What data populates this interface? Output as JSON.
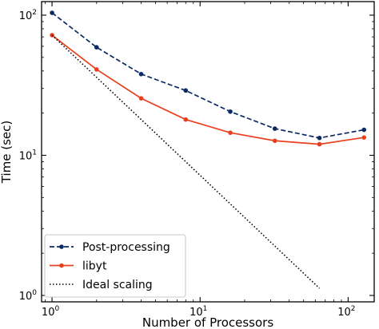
{
  "chart_data": {
    "type": "line",
    "title": "",
    "xlabel": "Number of Processors",
    "ylabel": "Time (sec)",
    "xscale": "log",
    "yscale": "log",
    "xlim": [
      0.85,
      150
    ],
    "ylim": [
      0.9,
      125
    ],
    "grid": false,
    "legend_position": "lower-left",
    "x_ticks": [
      {
        "value": 1,
        "base": "10",
        "exp": "0"
      },
      {
        "value": 10,
        "base": "10",
        "exp": "1"
      },
      {
        "value": 100,
        "base": "10",
        "exp": "2"
      }
    ],
    "y_ticks": [
      {
        "value": 1,
        "base": "10",
        "exp": "0"
      },
      {
        "value": 10,
        "base": "10",
        "exp": "1"
      },
      {
        "value": 100,
        "base": "10",
        "exp": "2"
      }
    ],
    "series": [
      {
        "name": "Post-processing",
        "color": "#0b2a63",
        "line_style": "dashed",
        "marker": "circle",
        "x": [
          1,
          2,
          4,
          8,
          16,
          32,
          64,
          128
        ],
        "y": [
          104,
          59,
          38,
          29,
          20.5,
          15.5,
          13.3,
          15.2
        ]
      },
      {
        "name": "libyt",
        "color": "#e8401e",
        "line_style": "solid",
        "marker": "circle",
        "x": [
          1,
          2,
          4,
          8,
          16,
          32,
          64,
          128
        ],
        "y": [
          72,
          41,
          25.5,
          18,
          14.5,
          12.7,
          12,
          13.4
        ]
      },
      {
        "name": "Ideal scaling",
        "color": "#000000",
        "line_style": "dotted",
        "marker": "none",
        "x": [
          1,
          64
        ],
        "y": [
          72,
          1.125
        ]
      }
    ]
  }
}
